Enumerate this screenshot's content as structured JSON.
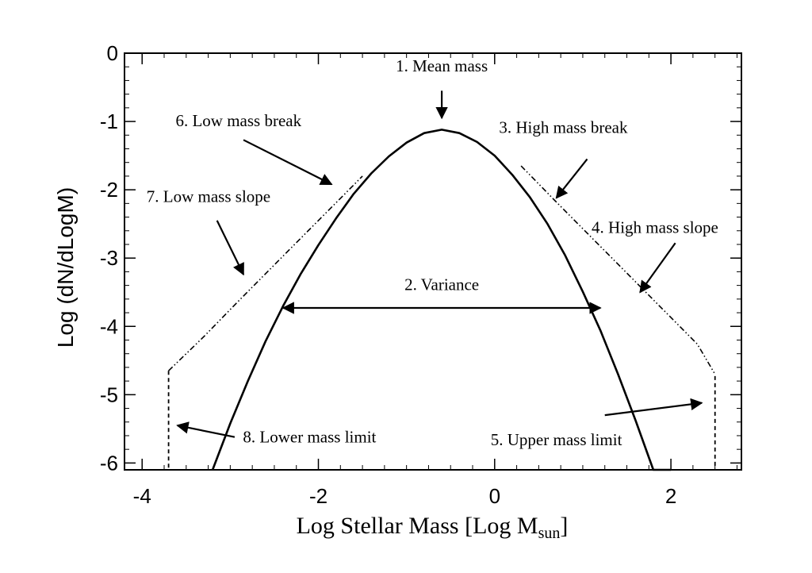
{
  "chart_data": {
    "type": "line",
    "xlabel": "Log Stellar Mass [Log M",
    "xlabel_sub": "sun",
    "xlabel_end": "]",
    "ylabel": "Log (dN/dLogM)",
    "xlim": [
      -4.2,
      2.8
    ],
    "ylim": [
      -6.1,
      0
    ],
    "x_ticks": [
      {
        "value": -4,
        "label": "-4"
      },
      {
        "value": -2,
        "label": "-2"
      },
      {
        "value": 0,
        "label": "0"
      },
      {
        "value": 2,
        "label": "2"
      }
    ],
    "y_ticks": [
      {
        "value": 0,
        "label": "0"
      },
      {
        "value": -1,
        "label": "-1"
      },
      {
        "value": -2,
        "label": "-2"
      },
      {
        "value": -3,
        "label": "-3"
      },
      {
        "value": -4,
        "label": "-4"
      },
      {
        "value": -5,
        "label": "-5"
      },
      {
        "value": -6,
        "label": "-6"
      }
    ],
    "grid": false,
    "series": [
      {
        "style": "solid",
        "x": [
          -3.2,
          -3.0,
          -2.8,
          -2.6,
          -2.4,
          -2.2,
          -2.0,
          -1.8,
          -1.6,
          -1.4,
          -1.2,
          -1.0,
          -0.8,
          -0.6,
          -0.4,
          -0.2,
          0.0,
          0.2,
          0.4,
          0.6,
          0.8,
          1.0,
          1.2,
          1.4,
          1.6,
          1.8,
          2.0
        ],
        "y": [
          -6.1,
          -5.42,
          -4.8,
          -4.22,
          -3.7,
          -3.23,
          -2.81,
          -2.42,
          -2.06,
          -1.76,
          -1.51,
          -1.31,
          -1.17,
          -1.12,
          -1.17,
          -1.3,
          -1.5,
          -1.78,
          -2.11,
          -2.5,
          -2.96,
          -3.49,
          -4.06,
          -4.7,
          -5.38,
          -6.1,
          -6.1
        ]
      },
      {
        "style": "dash-dot-dot",
        "x": [
          -3.7,
          -3.3,
          -2.9,
          -2.5,
          -2.1,
          -1.7,
          -1.5
        ],
        "y": [
          -4.65,
          -4.15,
          -3.62,
          -3.1,
          -2.58,
          -2.06,
          -1.8
        ]
      },
      {
        "style": "dash-dot-dot",
        "x": [
          0.3,
          0.7,
          1.1,
          1.5,
          1.9,
          2.3,
          2.5
        ],
        "y": [
          -1.65,
          -2.18,
          -2.7,
          -3.22,
          -3.74,
          -4.26,
          -4.7
        ]
      },
      {
        "style": "dashed",
        "x": [
          -3.7,
          -3.7,
          2.5,
          2.5
        ],
        "y": [
          -4.65,
          -6.1,
          -6.1,
          -4.7
        ]
      }
    ],
    "annotations": [
      {
        "id": "mean-mass",
        "text": "1. Mean mass",
        "tx": -0.6,
        "ty": -0.27,
        "anchor": "middle",
        "arrow": [
          [
            -0.6,
            -0.55
          ],
          [
            -0.6,
            -0.95
          ]
        ],
        "heads": "end"
      },
      {
        "id": "variance",
        "text": "2. Variance",
        "tx": -0.6,
        "ty": -3.47,
        "anchor": "middle",
        "arrow": [
          [
            -2.4,
            -3.73
          ],
          [
            1.2,
            -3.73
          ]
        ],
        "heads": "both"
      },
      {
        "id": "high-mass-break",
        "text": "3. High mass break",
        "tx": 0.05,
        "ty": -1.17,
        "anchor": "start",
        "arrow": [
          [
            1.05,
            -1.55
          ],
          [
            0.7,
            -2.12
          ]
        ],
        "heads": "end"
      },
      {
        "id": "high-mass-slope",
        "text": "4. High mass slope",
        "tx": 1.1,
        "ty": -2.63,
        "anchor": "start",
        "arrow": [
          [
            2.05,
            -2.78
          ],
          [
            1.65,
            -3.5
          ]
        ],
        "heads": "end"
      },
      {
        "id": "upper-mass-limit",
        "text": "5. Upper mass limit",
        "tx": 0.7,
        "ty": -5.74,
        "anchor": "middle",
        "arrow": [
          [
            1.25,
            -5.3
          ],
          [
            2.35,
            -5.12
          ]
        ],
        "heads": "end"
      },
      {
        "id": "low-mass-break",
        "text": "6. Low mass break",
        "tx": -3.62,
        "ty": -1.07,
        "anchor": "start",
        "arrow": [
          [
            -2.85,
            -1.27
          ],
          [
            -1.85,
            -1.92
          ]
        ],
        "heads": "end"
      },
      {
        "id": "low-mass-slope",
        "text": "7. Low mass slope",
        "tx": -3.95,
        "ty": -2.18,
        "anchor": "start",
        "arrow": [
          [
            -3.15,
            -2.45
          ],
          [
            -2.85,
            -3.24
          ]
        ],
        "heads": "end"
      },
      {
        "id": "lower-mass-limit",
        "text": "8. Lower mass limit",
        "tx": -2.1,
        "ty": -5.7,
        "anchor": "middle",
        "arrow": [
          [
            -2.95,
            -5.62
          ],
          [
            -3.6,
            -5.45
          ]
        ],
        "heads": "end"
      }
    ]
  }
}
